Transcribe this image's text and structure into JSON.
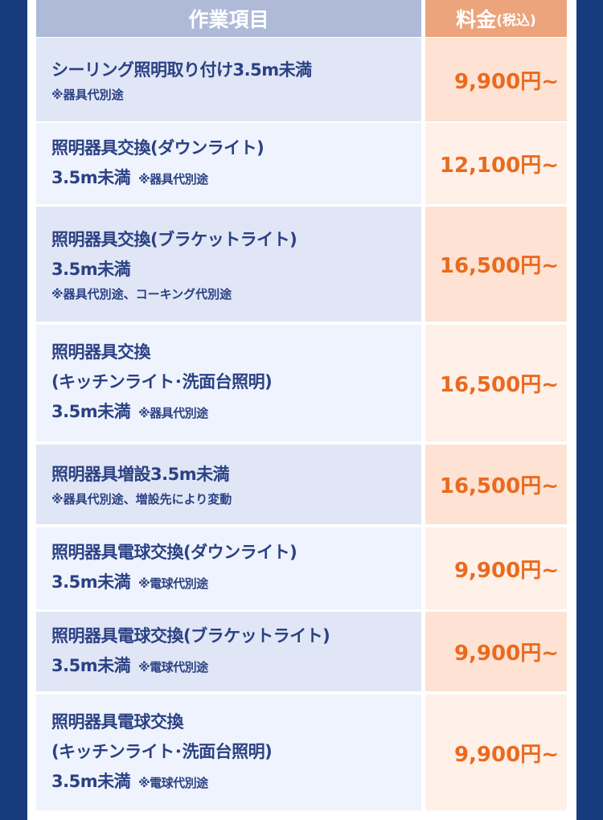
{
  "header": {
    "item": "作業項目",
    "price": "料金",
    "price_sub": "(税込)"
  },
  "rows": [
    {
      "lines": [
        "シーリング照明取り付け3.5m未満"
      ],
      "note": "※器具代別途",
      "note_inline": false,
      "price": "9,900円~"
    },
    {
      "lines": [
        "照明器具交換(ダウンライト)",
        "3.5m未満"
      ],
      "note": "※器具代別途",
      "note_inline": true,
      "price": "12,100円~"
    },
    {
      "lines": [
        "照明器具交換(ブラケットライト)",
        "3.5m未満"
      ],
      "note": "※器具代別途、コーキング代別途",
      "note_inline": false,
      "price": "16,500円~"
    },
    {
      "lines": [
        "照明器具交換",
        "(キッチンライト･洗面台照明)",
        "3.5m未満"
      ],
      "note": "※器具代別途",
      "note_inline": true,
      "price": "16,500円~"
    },
    {
      "lines": [
        "照明器具増設3.5m未満"
      ],
      "note": "※器具代別途、増設先により変動",
      "note_inline": false,
      "price": "16,500円~"
    },
    {
      "lines": [
        "照明器具電球交換(ダウンライト)",
        "3.5m未満"
      ],
      "note": "※電球代別途",
      "note_inline": true,
      "price": "9,900円~"
    },
    {
      "lines": [
        "照明器具電球交換(ブラケットライト)",
        "3.5m未満"
      ],
      "note": "※電球代別途",
      "note_inline": true,
      "price": "9,900円~"
    },
    {
      "lines": [
        "照明器具電球交換",
        "(キッチンライト･洗面台照明)",
        "3.5m未満"
      ],
      "note": "※電球代別途",
      "note_inline": true,
      "price": "9,900円~"
    }
  ],
  "colors": {
    "background": "#163c7e",
    "text": "#2b4184",
    "price": "#ea6a1e"
  }
}
